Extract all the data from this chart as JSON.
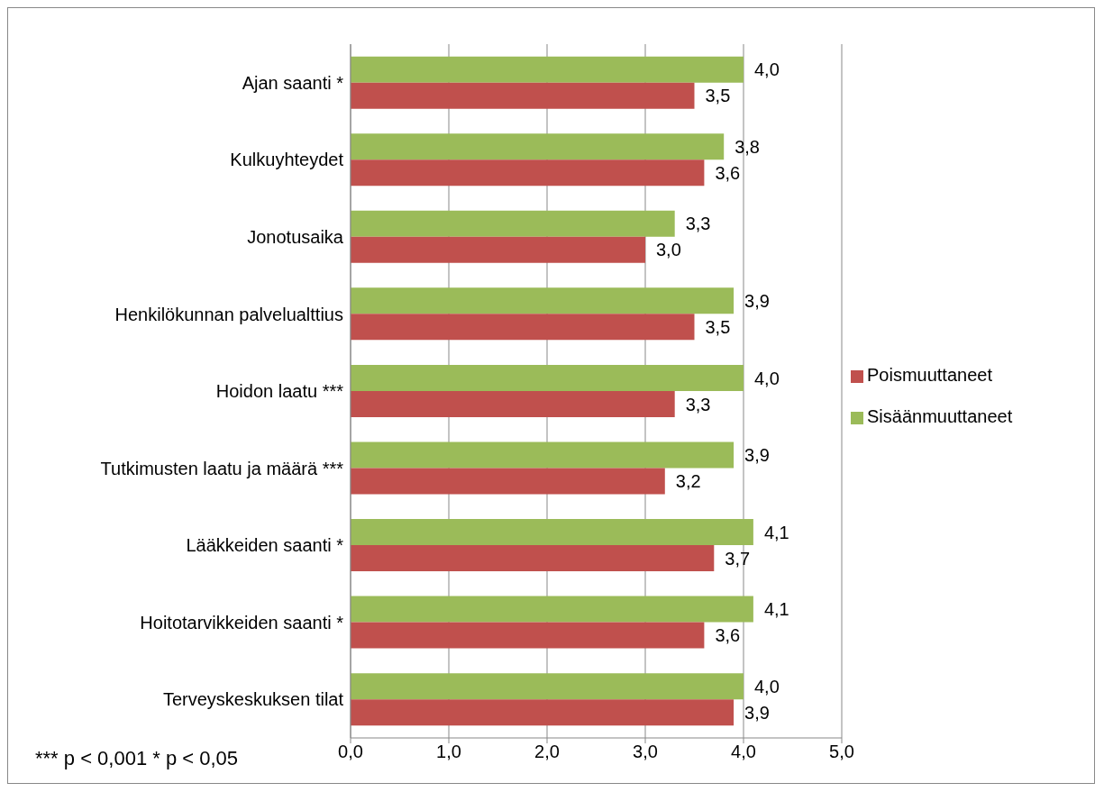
{
  "chart_data": {
    "type": "bar",
    "orientation": "horizontal",
    "categories": [
      "Ajan saanti *",
      "Kulkuyhteydet",
      "Jonotusaika",
      "Henkilökunnan palvelualttius",
      "Hoidon laatu ***",
      "Tutkimusten laatu ja määrä ***",
      "Lääkkeiden saanti *",
      "Hoitotarvikkeiden saanti *",
      "Terveyskeskuksen tilat"
    ],
    "series": [
      {
        "name": "Sisäänmuuttaneet",
        "color": "#9bbb59",
        "values": [
          4.0,
          3.8,
          3.3,
          3.9,
          4.0,
          3.9,
          4.1,
          4.1,
          4.0
        ],
        "value_labels": [
          "4,0",
          "3,8",
          "3,3",
          "3,9",
          "4,0",
          "3,9",
          "4,1",
          "4,1",
          "4,0"
        ]
      },
      {
        "name": "Poismuuttaneet",
        "color": "#c0504d",
        "values": [
          3.5,
          3.6,
          3.0,
          3.5,
          3.3,
          3.2,
          3.7,
          3.6,
          3.9
        ],
        "value_labels": [
          "3,5",
          "3,6",
          "3,0",
          "3,5",
          "3,3",
          "3,2",
          "3,7",
          "3,6",
          "3,9"
        ]
      }
    ],
    "xlim": [
      0,
      5
    ],
    "xticks": [
      {
        "value": 0,
        "label": "0,0"
      },
      {
        "value": 1,
        "label": "1,0"
      },
      {
        "value": 2,
        "label": "2,0"
      },
      {
        "value": 3,
        "label": "3,0"
      },
      {
        "value": 4,
        "label": "4,0"
      },
      {
        "value": 5,
        "label": "5,0"
      }
    ],
    "grid": "x",
    "legend": "right",
    "annotations": [
      "*** p < 0,001 * p < 0,05"
    ]
  }
}
